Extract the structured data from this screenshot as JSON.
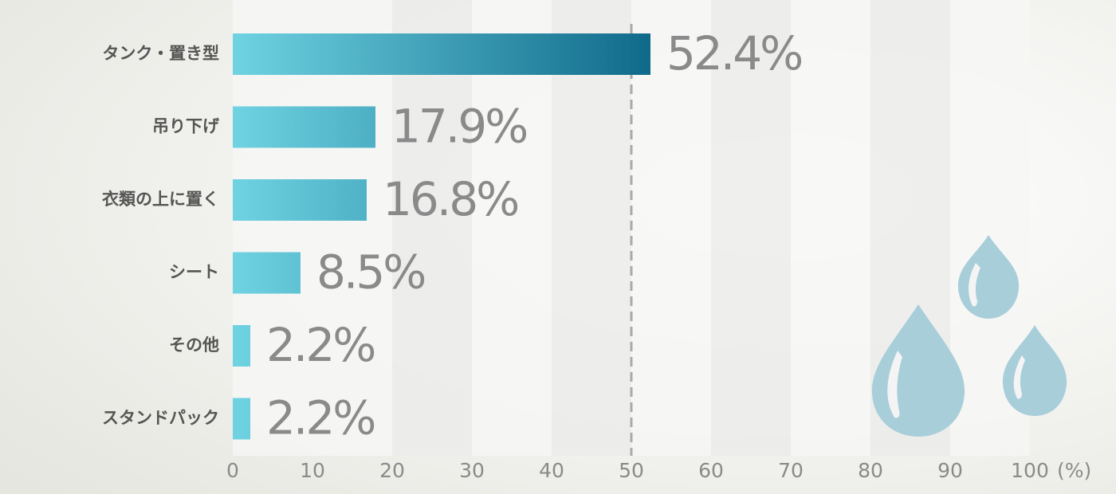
{
  "chart_data": {
    "type": "barh",
    "categories": [
      "タンク・置き型",
      "吊り下げ",
      "衣類の上に置く",
      "シート",
      "その他",
      "スタンドパック"
    ],
    "values": [
      52.4,
      17.9,
      16.8,
      8.5,
      2.2,
      2.2
    ],
    "value_labels": [
      "52.4%",
      "17.9%",
      "16.8%",
      "8.5%",
      "2.2%",
      "2.2%"
    ],
    "gradient": [
      "#6fd3e2",
      "#0f6a8a"
    ],
    "xlim": [
      0,
      100
    ],
    "xticks": [
      0,
      10,
      20,
      30,
      40,
      50,
      60,
      70,
      80,
      90,
      100
    ],
    "x_unit": "(%)",
    "reference_line": 50
  }
}
